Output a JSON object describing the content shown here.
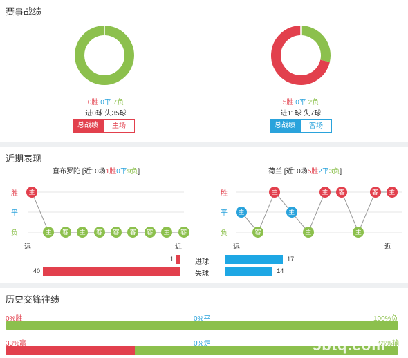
{
  "record": {
    "title": "赛事战绩",
    "left": {
      "win": "0胜",
      "draw": "0平",
      "loss": "7负",
      "goals": "进0球 失35球",
      "btn_total": "总战绩",
      "btn_venue": "主场",
      "donut": {
        "win": 0,
        "draw": 0,
        "loss": 7
      }
    },
    "right": {
      "win": "5胜",
      "draw": "0平",
      "loss": "2负",
      "goals": "进11球 失7球",
      "btn_total": "总战绩",
      "btn_venue": "客场",
      "donut": {
        "win": 5,
        "draw": 0,
        "loss": 2
      }
    }
  },
  "recent": {
    "title": "近期表现",
    "left": {
      "team": "直布罗陀",
      "summary_prefix": " [近10场",
      "win": "1胜",
      "draw": "0平",
      "loss": "9负",
      "summary_suffix": "]",
      "results": [
        "W",
        "L",
        "L",
        "L",
        "L",
        "L",
        "L",
        "L",
        "L",
        "L"
      ],
      "venues": [
        "主",
        "主",
        "客",
        "主",
        "客",
        "客",
        "客",
        "客",
        "主",
        "客"
      ],
      "far": "远",
      "near": "近"
    },
    "right": {
      "team": "荷兰",
      "summary_prefix": " [近10场",
      "win": "5胜",
      "draw": "2平",
      "loss": "3负",
      "summary_suffix": "]",
      "results": [
        "D",
        "L",
        "W",
        "D",
        "L",
        "W",
        "W",
        "L",
        "W",
        "W"
      ],
      "venues": [
        "主",
        "客",
        "主",
        "主",
        "主",
        "主",
        "客",
        "主",
        "客",
        "主"
      ],
      "far": "远",
      "near": "近"
    },
    "y_labels": {
      "win": "胜",
      "draw": "平",
      "loss": "负"
    },
    "stats": {
      "goals_label": "进球",
      "conceded_label": "失球",
      "left_goals": 1,
      "right_goals": 17,
      "left_conceded": 40,
      "right_conceded": 14
    }
  },
  "history": {
    "title": "历史交锋往绩",
    "row1": {
      "left": "0%胜",
      "mid": "0%平",
      "right": "100%负",
      "red_pct": 0
    },
    "row2": {
      "left": "33%赢",
      "mid": "0%走",
      "right": "66%输",
      "red_pct": 33
    }
  },
  "watermark": "5btq.com",
  "colors": {
    "win": "#e2404d",
    "draw": "#2aa3dc",
    "loss": "#8cc04d"
  }
}
